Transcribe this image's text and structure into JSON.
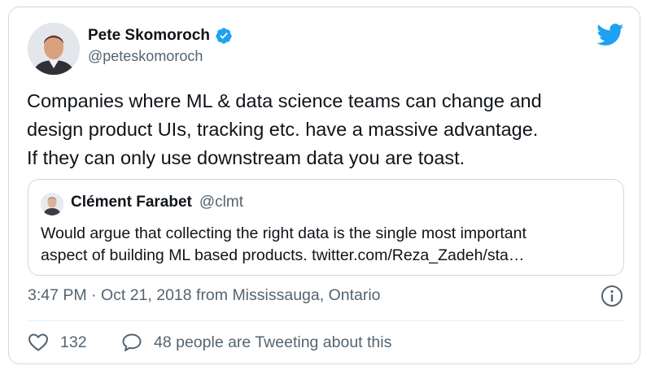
{
  "author": {
    "name": "Pete Skomoroch",
    "handle": "@peteskomoroch",
    "verified": true
  },
  "tweet": {
    "text": "Companies where ML & data science teams can change and\ndesign product UIs, tracking etc. have a massive advantage.\nIf they can only use downstream data you are toast."
  },
  "quoted": {
    "name": "Clément Farabet",
    "handle": "@clmt",
    "text": "Would argue that collecting the right data is the single most important\naspect of building ML based products. twitter.com/Reza_Zadeh/sta…"
  },
  "meta": {
    "timestamp": "3:47 PM · Oct 21, 2018 from Mississauga, Ontario"
  },
  "actions": {
    "likes": "132",
    "conversation": "48 people are Tweeting about this"
  },
  "icons": {
    "logo": "twitter-bird-icon",
    "verified": "verified-badge-icon",
    "info": "info-icon",
    "like": "heart-icon",
    "reply": "speech-bubble-icon"
  },
  "colors": {
    "accent": "#1da1f2",
    "text": "#0f1419",
    "secondary": "#536471",
    "border": "#cfd9de"
  }
}
